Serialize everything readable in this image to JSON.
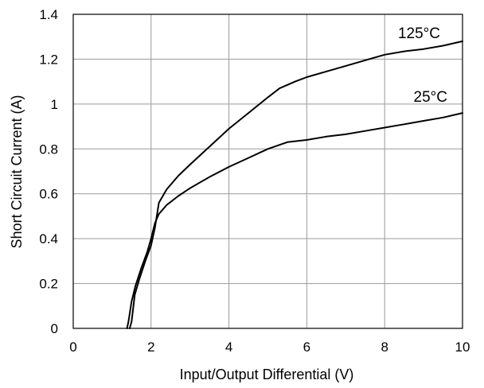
{
  "chart_data": {
    "type": "line",
    "title": "",
    "xlabel": "Input/Output Differential (V)",
    "ylabel": "Short Circuit Current (A)",
    "xlim": [
      0,
      10
    ],
    "ylim": [
      0,
      1.4
    ],
    "x_ticks": [
      0,
      2,
      4,
      6,
      8,
      10
    ],
    "x_tick_labels": [
      "0",
      "2",
      "4",
      "6",
      "8",
      "10"
    ],
    "y_ticks": [
      0,
      0.2,
      0.4,
      0.6,
      0.8,
      1.0,
      1.2,
      1.4
    ],
    "y_tick_labels": [
      "0",
      "0.2",
      "0.4",
      "0.6",
      "0.8",
      "1",
      "1.2",
      "1.4"
    ],
    "grid": true,
    "legend": "none",
    "line_color": "#000000",
    "grid_color": "#9a9a9a",
    "series": [
      {
        "name": "125°C",
        "x": [
          1.45,
          1.5,
          1.58,
          1.7,
          1.85,
          2.0,
          2.1,
          2.2,
          2.4,
          2.7,
          3.0,
          3.5,
          4.0,
          4.5,
          5.0,
          5.3,
          5.7,
          6.0,
          6.5,
          7.0,
          7.5,
          8.0,
          8.5,
          9.0,
          9.5,
          10.0
        ],
        "y": [
          0.0,
          0.03,
          0.15,
          0.22,
          0.3,
          0.37,
          0.45,
          0.56,
          0.62,
          0.68,
          0.73,
          0.81,
          0.89,
          0.96,
          1.03,
          1.07,
          1.1,
          1.12,
          1.145,
          1.17,
          1.195,
          1.22,
          1.235,
          1.245,
          1.26,
          1.28
        ]
      },
      {
        "name": "25°C",
        "x": [
          1.38,
          1.42,
          1.5,
          1.6,
          1.75,
          1.9,
          2.0,
          2.1,
          2.2,
          2.4,
          2.7,
          3.0,
          3.5,
          4.0,
          4.5,
          5.0,
          5.5,
          6.0,
          6.5,
          7.0,
          7.5,
          8.0,
          8.5,
          9.0,
          9.5,
          10.0
        ],
        "y": [
          0.0,
          0.03,
          0.12,
          0.19,
          0.27,
          0.34,
          0.4,
          0.47,
          0.51,
          0.55,
          0.59,
          0.625,
          0.675,
          0.72,
          0.76,
          0.8,
          0.83,
          0.84,
          0.855,
          0.865,
          0.88,
          0.895,
          0.91,
          0.925,
          0.94,
          0.96
        ]
      }
    ]
  }
}
